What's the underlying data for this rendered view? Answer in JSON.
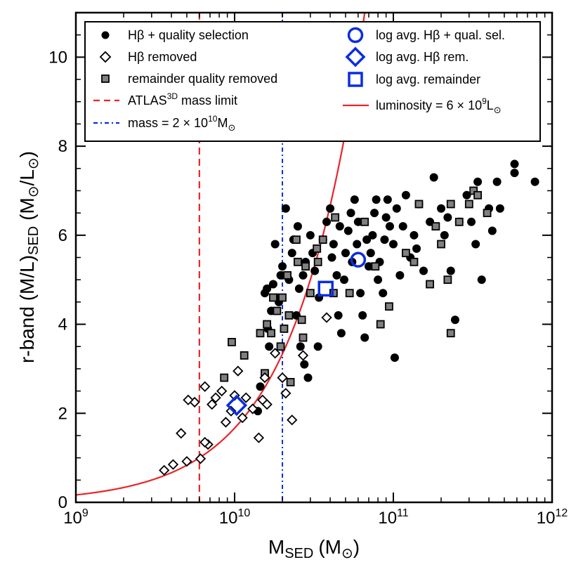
{
  "chart_data": {
    "type": "scatter",
    "xscale": "log",
    "xlim": [
      1000000000.0,
      1000000000000.0
    ],
    "ylim": [
      0,
      11
    ],
    "x_label": {
      "main": "M",
      "sub": "SED",
      "paren": "(M",
      "paren_close": ")"
    },
    "y_label": {
      "main": "r-band (M/L)",
      "sub": "SED",
      "units_open": "(M",
      "units_mid": "/L",
      "units_close": ")"
    },
    "sun_symbol": "⊙",
    "x_ticks": [
      {
        "value": 1000000000.0,
        "base": "10",
        "exp": "9"
      },
      {
        "value": 10000000000.0,
        "base": "10",
        "exp": "10"
      },
      {
        "value": 100000000000.0,
        "base": "10",
        "exp": "11"
      },
      {
        "value": 1000000000000.0,
        "base": "10",
        "exp": "12"
      }
    ],
    "y_ticks": [
      {
        "value": 0,
        "label": "0"
      },
      {
        "value": 2,
        "label": "2"
      },
      {
        "value": 4,
        "label": "4"
      },
      {
        "value": 6,
        "label": "6"
      },
      {
        "value": 8,
        "label": "8"
      },
      {
        "value": 10,
        "label": "10"
      }
    ],
    "legend": {
      "hb_quality": "Hβ + quality selection",
      "hb_removed": "Hβ removed",
      "remainder": "remainder quality removed",
      "atlas_pre": "ATLAS",
      "atlas_sup": "3D",
      "atlas_post": " mass limit",
      "mass_pre": "mass = 2 × 10",
      "mass_sup": "10",
      "mass_post": "M",
      "avg_hb_quality": "log avg. Hβ + qual. sel.",
      "avg_hb_removed": "log avg. Hβ rem.",
      "avg_remainder": "log avg. remainder",
      "lum_pre": "luminosity = 6 × 10",
      "lum_sup": "9",
      "lum_post": "L"
    },
    "colors": {
      "red": "#e8262a",
      "blue": "#0a2ee0",
      "gray": "#808080"
    },
    "reference_lines": {
      "atlas_mass_limit": 6000000000.0,
      "mass_line": 20000000000.0,
      "luminosity": 6000000000.0
    },
    "series": [
      {
        "name": "Hβ + quality selection",
        "points": [
          [
            14000000000.0,
            2.05
          ],
          [
            14500000000.0,
            2.6
          ],
          [
            16500000000.0,
            3.5
          ],
          [
            16000000000.0,
            4.8
          ],
          [
            15500000000.0,
            4.7
          ],
          [
            18000000000.0,
            5.8
          ],
          [
            18500000000.0,
            4.6
          ],
          [
            19500000000.0,
            5.1
          ],
          [
            17000000000.0,
            4.3
          ],
          [
            16200000000.0,
            3.9
          ],
          [
            21000000000.0,
            6.6
          ],
          [
            23000000000.0,
            5.6
          ],
          [
            22000000000.0,
            5.0
          ],
          [
            24500000000.0,
            4.2
          ],
          [
            26000000000.0,
            3.5
          ],
          [
            27500000000.0,
            3.1
          ],
          [
            29000000000.0,
            2.8
          ],
          [
            25500000000.0,
            4.8
          ],
          [
            28000000000.0,
            5.4
          ],
          [
            30000000000.0,
            6.0
          ],
          [
            32000000000.0,
            5.2
          ],
          [
            34000000000.0,
            4.6
          ],
          [
            33500000000.0,
            3.5
          ],
          [
            38000000000.0,
            6.3
          ],
          [
            40000000000.0,
            6.6
          ],
          [
            42000000000.0,
            5.8
          ],
          [
            44000000000.0,
            5.1
          ],
          [
            45000000000.0,
            4.2
          ],
          [
            47000000000.0,
            3.8
          ],
          [
            50000000000.0,
            5.6
          ],
          [
            52000000000.0,
            6.1
          ],
          [
            54000000000.0,
            6.5
          ],
          [
            57000000000.0,
            6.8
          ],
          [
            59000000000.0,
            5.8
          ],
          [
            62000000000.0,
            4.7
          ],
          [
            64000000000.0,
            4.2
          ],
          [
            66000000000.0,
            3.7
          ],
          [
            70000000000.0,
            5.3
          ],
          [
            74000000000.0,
            6.0
          ],
          [
            78000000000.0,
            6.8
          ],
          [
            82000000000.0,
            5.4
          ],
          [
            86000000000.0,
            4.7
          ],
          [
            90000000000.0,
            6.4
          ],
          [
            95000000000.0,
            6.2
          ],
          [
            100000000000.0,
            5.8
          ],
          [
            102000000000.0,
            3.25
          ],
          [
            105000000000.0,
            6.6
          ],
          [
            110000000000.0,
            5.1
          ],
          [
            120000000000.0,
            6.9
          ],
          [
            128000000000.0,
            5.5
          ],
          [
            135000000000.0,
            6.0
          ],
          [
            145000000000.0,
            6.7
          ],
          [
            155000000000.0,
            5.2
          ],
          [
            170000000000.0,
            6.3
          ],
          [
            180000000000.0,
            7.3
          ],
          [
            210000000000.0,
            6.0
          ],
          [
            245000000000.0,
            4.1
          ],
          [
            230000000000.0,
            5.2
          ],
          [
            260000000000.0,
            6.3
          ],
          [
            290000000000.0,
            6.9
          ],
          [
            340000000000.0,
            7.2
          ],
          [
            360000000000.0,
            5.0
          ],
          [
            330000000000.0,
            5.8
          ],
          [
            420000000000.0,
            6.1
          ],
          [
            450000000000.0,
            7.2
          ],
          [
            470000000000.0,
            6.6
          ],
          [
            580000000000.0,
            7.6
          ],
          [
            580000000000.0,
            7.4
          ],
          [
            780000000000.0,
            7.2
          ],
          [
            17500000000.0,
            4.9
          ],
          [
            19000000000.0,
            4.5
          ],
          [
            20000000000.0,
            5.3
          ],
          [
            23500000000.0,
            5.9
          ],
          [
            25000000000.0,
            6.2
          ],
          [
            27000000000.0,
            5.1
          ],
          [
            31000000000.0,
            5.6
          ],
          [
            36000000000.0,
            5.9
          ],
          [
            41000000000.0,
            5.5
          ],
          [
            46000000000.0,
            6.2
          ],
          [
            49000000000.0,
            5.0
          ],
          [
            55000000000.0,
            5.4
          ],
          [
            60000000000.0,
            6.3
          ],
          [
            68000000000.0,
            5.9
          ],
          [
            72000000000.0,
            5.6
          ],
          [
            76000000000.0,
            6.5
          ],
          [
            80000000000.0,
            5.0
          ],
          [
            88000000000.0,
            5.9
          ],
          [
            92000000000.0,
            6.8
          ],
          [
            115000000000.0,
            6.2
          ],
          [
            140000000000.0,
            5.7
          ],
          [
            200000000000.0,
            6.6
          ],
          [
            220000000000.0,
            6.4
          ],
          [
            310000000000.0,
            6.3
          ],
          [
            400000000000.0,
            6.6
          ]
        ]
      },
      {
        "name": "Hβ removed",
        "points": [
          [
            3600000000.0,
            0.72
          ],
          [
            4100000000.0,
            0.85
          ],
          [
            5000000000.0,
            0.92
          ],
          [
            6100000000.0,
            0.98
          ],
          [
            4600000000.0,
            1.55
          ],
          [
            6800000000.0,
            1.3
          ],
          [
            6500000000.0,
            1.35
          ],
          [
            5600000000.0,
            2.25
          ],
          [
            5100000000.0,
            2.3
          ],
          [
            6500000000.0,
            2.6
          ],
          [
            7200000000.0,
            2.2
          ],
          [
            7600000000.0,
            2.35
          ],
          [
            8300000000.0,
            2.5
          ],
          [
            8800000000.0,
            1.8
          ],
          [
            9500000000.0,
            2.05
          ],
          [
            10000000000.0,
            2.4
          ],
          [
            10500000000.0,
            2.95
          ],
          [
            11200000000.0,
            1.9
          ],
          [
            11800000000.0,
            2.35
          ],
          [
            13000000000.0,
            2.1
          ],
          [
            14200000000.0,
            1.45
          ],
          [
            15000000000.0,
            2.3
          ],
          [
            16000000000.0,
            2.2
          ],
          [
            18000000000.0,
            3.35
          ],
          [
            20000000000.0,
            2.8
          ],
          [
            21000000000.0,
            2.45
          ],
          [
            23000000000.0,
            1.85
          ],
          [
            27000000000.0,
            3.3
          ],
          [
            38000000000.0,
            4.15
          ],
          [
            15500000000.0,
            2.8
          ]
        ]
      },
      {
        "name": "remainder quality removed",
        "points": [
          [
            8600000000.0,
            2.8
          ],
          [
            9600000000.0,
            3.6
          ],
          [
            11500000000.0,
            3.3
          ],
          [
            14500000000.0,
            3.8
          ],
          [
            15500000000.0,
            2.9
          ],
          [
            17000000000.0,
            3.8
          ],
          [
            17500000000.0,
            4.6
          ],
          [
            18500000000.0,
            4.3
          ],
          [
            20000000000.0,
            4.6
          ],
          [
            20500000000.0,
            3.9
          ],
          [
            21500000000.0,
            5.1
          ],
          [
            22000000000.0,
            4.2
          ],
          [
            22500000000.0,
            2.7
          ],
          [
            24500000000.0,
            5.9
          ],
          [
            25000000000.0,
            5.4
          ],
          [
            26500000000.0,
            4.1
          ],
          [
            28000000000.0,
            5.3
          ],
          [
            30000000000.0,
            4.7
          ],
          [
            33000000000.0,
            5.7
          ],
          [
            33500000000.0,
            5.4
          ],
          [
            36000000000.0,
            5.9
          ],
          [
            43000000000.0,
            6.4
          ],
          [
            42000000000.0,
            4.7
          ],
          [
            53000000000.0,
            4.7
          ],
          [
            66000000000.0,
            6.3
          ],
          [
            77000000000.0,
            5.3
          ],
          [
            83000000000.0,
            4.0
          ],
          [
            94000000000.0,
            4.4
          ],
          [
            120000000000.0,
            5.6
          ],
          [
            135000000000.0,
            5.4
          ],
          [
            145000000000.0,
            6.7
          ],
          [
            170000000000.0,
            4.9
          ],
          [
            185000000000.0,
            6.2
          ],
          [
            200000000000.0,
            5.8
          ],
          [
            220000000000.0,
            5.0
          ],
          [
            230000000000.0,
            6.7
          ],
          [
            260000000000.0,
            6.3
          ],
          [
            300000000000.0,
            6.7
          ],
          [
            320000000000.0,
            7.0
          ],
          [
            340000000000.0,
            6.9
          ],
          [
            390000000000.0,
            6.5
          ],
          [
            230000000000.0,
            3.8
          ],
          [
            27000000000.0,
            3.7
          ],
          [
            19500000000.0,
            3.5
          ],
          [
            16000000000.0,
            4.0
          ]
        ]
      },
      {
        "name": "log avg. Hβ + qual. sel.",
        "points": [
          [
            60000000000.0,
            5.45
          ]
        ]
      },
      {
        "name": "log avg. Hβ rem.",
        "points": [
          [
            10300000000.0,
            2.18
          ]
        ]
      },
      {
        "name": "log avg. remainder",
        "points": [
          [
            37500000000.0,
            4.8
          ]
        ]
      }
    ]
  }
}
